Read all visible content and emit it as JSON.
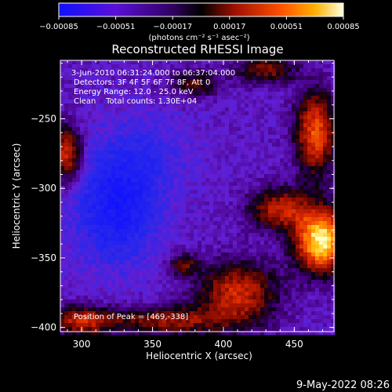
{
  "chart_data": {
    "type": "heatmap",
    "title": "Reconstructed RHESSI Image",
    "xlabel": "Heliocentric X (arcsec)",
    "ylabel": "Heliocentric Y (arcsec)",
    "xlim": [
      285,
      478
    ],
    "ylim": [
      -403,
      -208
    ],
    "x_ticks": [
      300,
      350,
      400,
      450
    ],
    "y_ticks": [
      -250,
      -300,
      -350,
      -400
    ],
    "x_tick_labels": [
      "300",
      "350",
      "400",
      "450"
    ],
    "y_tick_labels": [
      "−250",
      "−300",
      "−350",
      "−400"
    ],
    "colorbar": {
      "range": [
        -0.00085,
        0.00085
      ],
      "tick_labels": [
        "−0.00085",
        "−0.00051",
        "−0.00017",
        "0.00017",
        "0.00051",
        "0.00085"
      ],
      "unit_label": "(photons cm⁻² s⁻¹ asec⁻²)",
      "colors": [
        "#1010ff",
        "#6a10d0",
        "#3a0070",
        "#000000",
        "#a01000",
        "#ff4000",
        "#ffb000",
        "#ffffc0"
      ]
    },
    "annotations": [
      "3-Jun-2010 06:31:24.000 to 06:37:04.000",
      "Detectors: 3F 4F 5F 6F 7F 8F, Att 0",
      "Energy Range: 12.0 - 25.0 keV",
      "Clean    Total counts: 1.30E+04"
    ],
    "peak_label": "Position of Peak = [469,-338]",
    "peak": [
      469,
      -338
    ],
    "grid": false
  },
  "footer": {
    "date": "9-May-2022 08:26"
  }
}
